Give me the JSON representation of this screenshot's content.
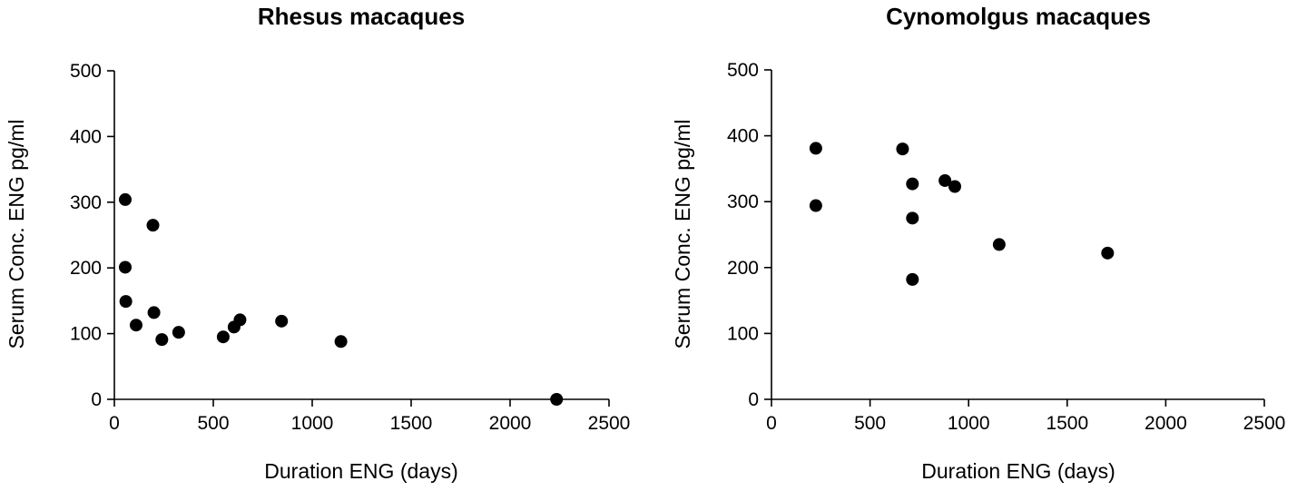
{
  "chart_data": [
    {
      "type": "scatter",
      "title": "Rhesus macaques",
      "xlabel": "Duration ENG (days)",
      "ylabel": "Serum Conc. ENG pg/ml",
      "xlim": [
        0,
        2500
      ],
      "ylim": [
        0,
        500
      ],
      "xticks": [
        "0",
        "500",
        "1000",
        "1500",
        "2000",
        "2500"
      ],
      "yticks": [
        "0",
        "100",
        "200",
        "300",
        "400",
        "500"
      ],
      "grid": false,
      "points": [
        {
          "x": 55,
          "y": 304
        },
        {
          "x": 55,
          "y": 201
        },
        {
          "x": 58,
          "y": 149
        },
        {
          "x": 110,
          "y": 113
        },
        {
          "x": 195,
          "y": 265
        },
        {
          "x": 200,
          "y": 132
        },
        {
          "x": 240,
          "y": 91
        },
        {
          "x": 325,
          "y": 102
        },
        {
          "x": 550,
          "y": 95
        },
        {
          "x": 605,
          "y": 110
        },
        {
          "x": 635,
          "y": 121
        },
        {
          "x": 845,
          "y": 119
        },
        {
          "x": 1145,
          "y": 88
        },
        {
          "x": 2235,
          "y": 0
        }
      ]
    },
    {
      "type": "scatter",
      "title": "Cynomolgus macaques",
      "xlabel": "Duration ENG (days)",
      "ylabel": "Serum Conc. ENG pg/ml",
      "xlim": [
        0,
        2500
      ],
      "ylim": [
        0,
        500
      ],
      "xticks": [
        "0",
        "500",
        "1000",
        "1500",
        "2000",
        "2500"
      ],
      "yticks": [
        "0",
        "100",
        "200",
        "300",
        "400",
        "500"
      ],
      "grid": false,
      "points": [
        {
          "x": 225,
          "y": 381
        },
        {
          "x": 225,
          "y": 294
        },
        {
          "x": 665,
          "y": 380
        },
        {
          "x": 715,
          "y": 327
        },
        {
          "x": 715,
          "y": 275
        },
        {
          "x": 715,
          "y": 182
        },
        {
          "x": 880,
          "y": 332
        },
        {
          "x": 930,
          "y": 323
        },
        {
          "x": 1155,
          "y": 235
        },
        {
          "x": 1705,
          "y": 222
        }
      ]
    }
  ]
}
